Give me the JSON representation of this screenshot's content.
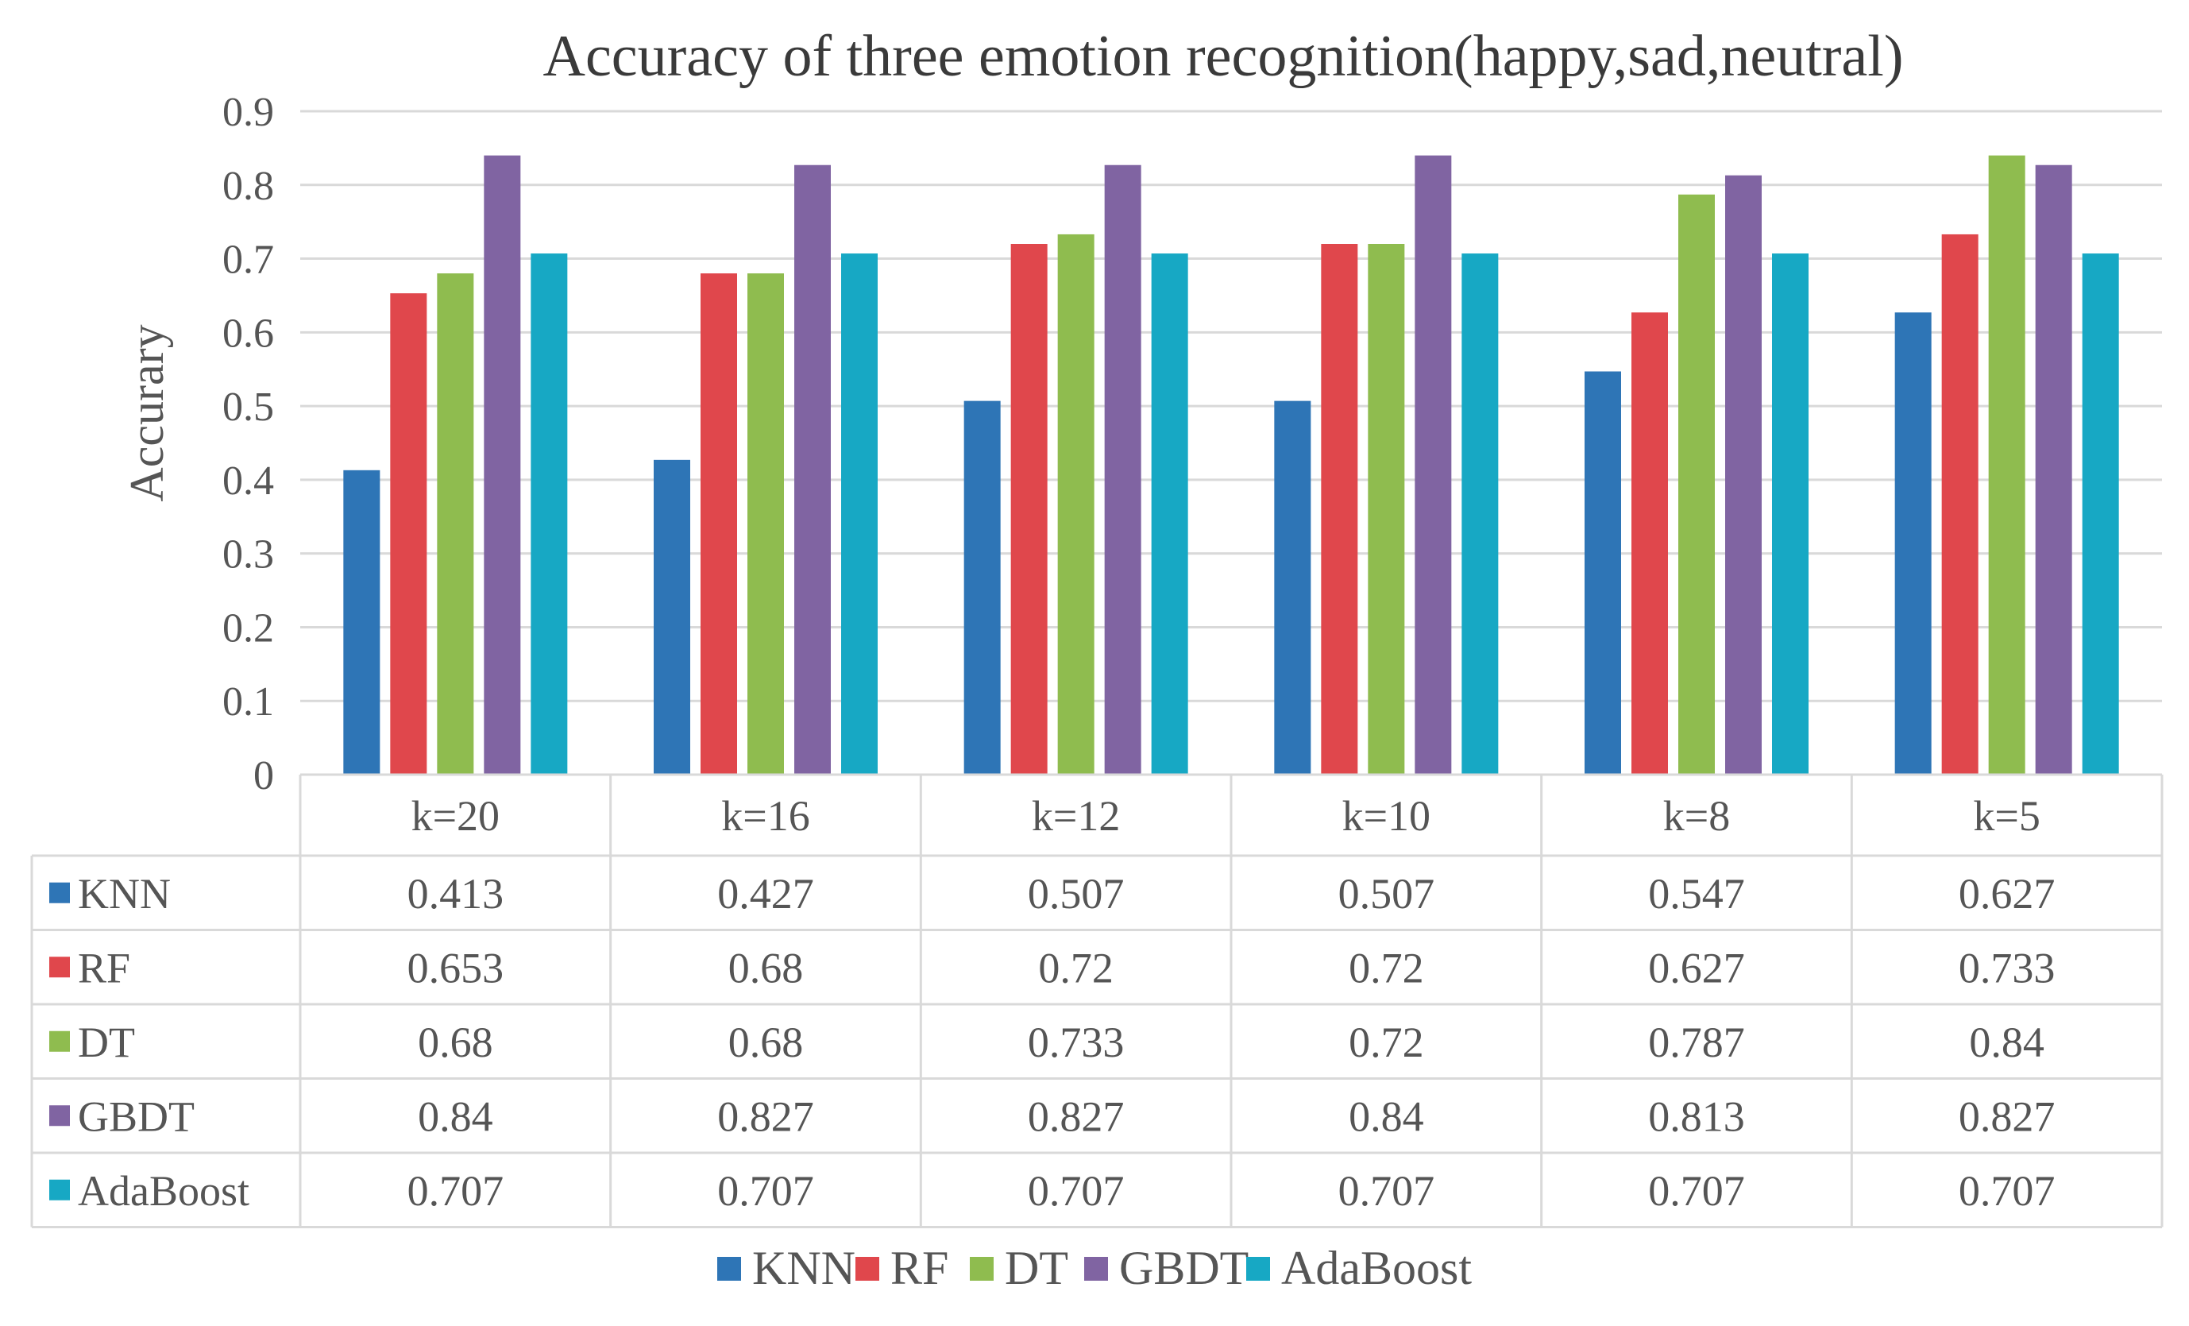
{
  "colors": {
    "KNN": "#2e75b6",
    "RF": "#e0474c",
    "DT": "#8fbc4f",
    "GBDT": "#8064a2",
    "AdaBoost": "#17a8c4"
  },
  "chart_data": {
    "type": "bar",
    "title": "Accuracy of three emotion recognition(happy,sad,neutral)",
    "xlabel": "",
    "ylabel": "Accurary",
    "ylim": [
      0,
      0.9
    ],
    "yticks": [
      "0",
      "0.1",
      "0.2",
      "0.3",
      "0.4",
      "0.5",
      "0.6",
      "0.7",
      "0.8",
      "0.9"
    ],
    "grid": true,
    "legend_position": "bottom",
    "categories": [
      "k=20",
      "k=16",
      "k=12",
      "k=10",
      "k=8",
      "k=5"
    ],
    "series": [
      {
        "name": "KNN",
        "values": [
          0.413,
          0.427,
          0.507,
          0.507,
          0.547,
          0.627
        ],
        "labels": [
          "0.413",
          "0.427",
          "0.507",
          "0.507",
          "0.547",
          "0.627"
        ]
      },
      {
        "name": "RF",
        "values": [
          0.653,
          0.68,
          0.72,
          0.72,
          0.627,
          0.733
        ],
        "labels": [
          "0.653",
          "0.68",
          "0.72",
          "0.72",
          "0.627",
          "0.733"
        ]
      },
      {
        "name": "DT",
        "values": [
          0.68,
          0.68,
          0.733,
          0.72,
          0.787,
          0.84
        ],
        "labels": [
          "0.68",
          "0.68",
          "0.733",
          "0.72",
          "0.787",
          "0.84"
        ]
      },
      {
        "name": "GBDT",
        "values": [
          0.84,
          0.827,
          0.827,
          0.84,
          0.813,
          0.827
        ],
        "labels": [
          "0.84",
          "0.827",
          "0.827",
          "0.84",
          "0.813",
          "0.827"
        ]
      },
      {
        "name": "AdaBoost",
        "values": [
          0.707,
          0.707,
          0.707,
          0.707,
          0.707,
          0.707
        ],
        "labels": [
          "0.707",
          "0.707",
          "0.707",
          "0.707",
          "0.707",
          "0.707"
        ]
      }
    ]
  }
}
